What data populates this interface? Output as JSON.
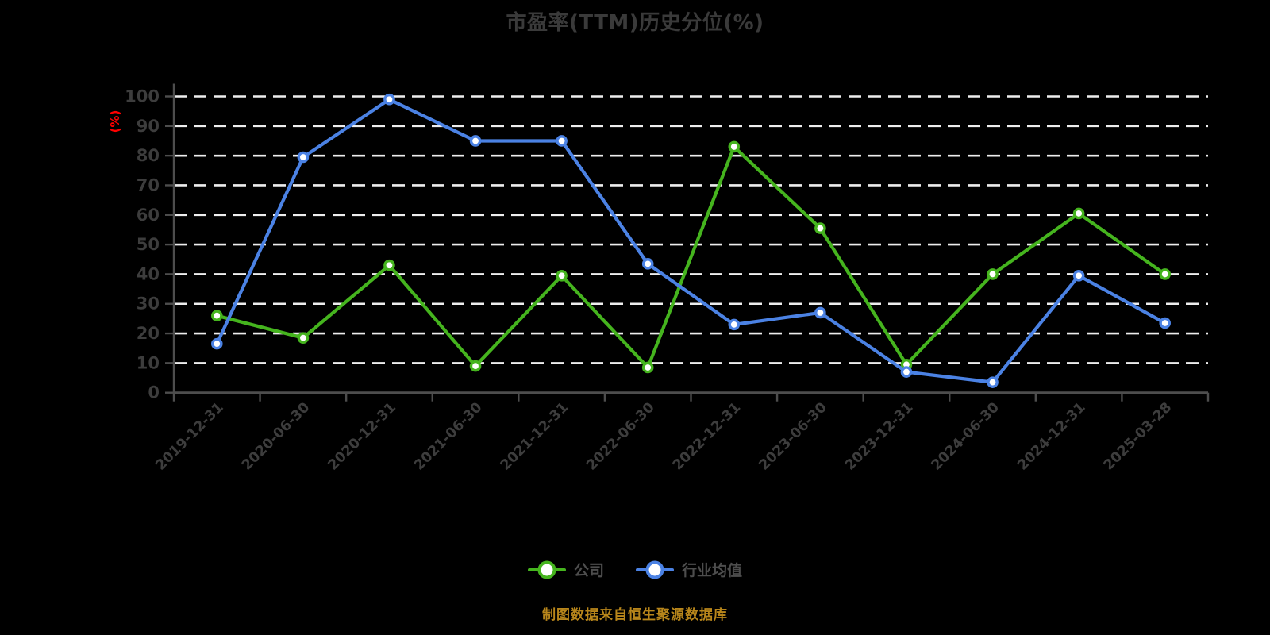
{
  "title": {
    "text": "市盈率(TTM)历史分位(%)",
    "color": "#3a3a3a"
  },
  "footer": {
    "text": "制图数据来自恒生聚源数据库",
    "color": "#b8861b"
  },
  "colors": {
    "background": "#000000",
    "grid": "#ededed",
    "axis": "#4d4d4d",
    "tick_label": "#3d3d3d",
    "legend_text": "#4d4d4d",
    "unit_label": "#ff0000",
    "marker_fill": "#ffffff"
  },
  "chart_data": {
    "type": "line",
    "title": "市盈率(TTM)历史分位(%)",
    "ylabel": "(%)",
    "xlabel": "",
    "categories": [
      "2019-12-31",
      "2020-06-30",
      "2020-12-31",
      "2021-06-30",
      "2021-12-31",
      "2022-06-30",
      "2022-12-31",
      "2023-06-30",
      "2023-12-31",
      "2024-06-30",
      "2024-12-31",
      "2025-03-28"
    ],
    "series": [
      {
        "name": "公司",
        "color": "#45b41e",
        "values": [
          26,
          18.5,
          43,
          9,
          39.5,
          8.5,
          83,
          55.5,
          9.5,
          40,
          60.5,
          40
        ]
      },
      {
        "name": "行业均值",
        "color": "#4b82e4",
        "values": [
          16.5,
          79.5,
          99,
          85,
          85,
          43.5,
          23,
          27,
          7,
          3.5,
          39.5,
          23.5
        ]
      }
    ],
    "ylim": [
      0,
      100
    ],
    "ytick_step": 10,
    "grid": "horizontal-dashed",
    "legend_position": "bottom",
    "marker": "circle-white-fill"
  }
}
